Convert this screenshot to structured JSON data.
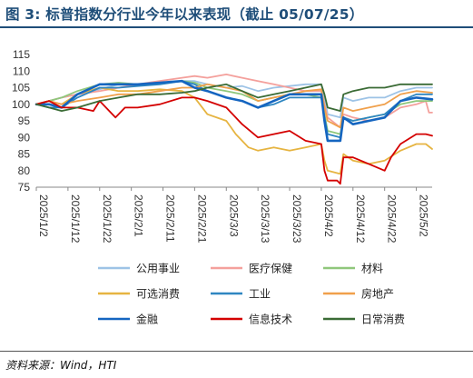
{
  "figure": {
    "title": "图 3:  标普指数分行业今年以来表现（截止 05/07/25）",
    "source": "资料来源：Wind，HTI"
  },
  "chart_data": {
    "type": "line",
    "yticks": [
      75,
      80,
      85,
      90,
      95,
      100,
      105,
      110,
      115
    ],
    "ylim": [
      75,
      115
    ],
    "xticks": [
      "2025/1/2",
      "2025/1/12",
      "2025/1/22",
      "2025/2/1",
      "2025/2/11",
      "2025/2/21",
      "2025/3/3",
      "2025/3/13",
      "2025/3/23",
      "2025/4/2",
      "2025/4/12",
      "2025/4/22",
      "2025/5/2"
    ],
    "xlim": [
      "2025/1/2",
      "2025/5/7"
    ],
    "legend_position": "bottom",
    "grid": false,
    "series": [
      {
        "name": "公用事业",
        "color": "#9dc3e6",
        "width": 1.8,
        "points": [
          [
            "2025/1/2",
            100
          ],
          [
            "2025/1/6",
            101
          ],
          [
            "2025/1/10",
            102
          ],
          [
            "2025/1/15",
            103
          ],
          [
            "2025/1/22",
            104.5
          ],
          [
            "2025/1/28",
            106
          ],
          [
            "2025/2/3",
            106
          ],
          [
            "2025/2/10",
            106.5
          ],
          [
            "2025/2/17",
            107
          ],
          [
            "2025/2/21",
            107
          ],
          [
            "2025/2/25",
            106
          ],
          [
            "2025/3/3",
            105
          ],
          [
            "2025/3/8",
            105.5
          ],
          [
            "2025/3/13",
            104
          ],
          [
            "2025/3/18",
            105
          ],
          [
            "2025/3/23",
            105.5
          ],
          [
            "2025/3/28",
            106
          ],
          [
            "2025/4/2",
            106
          ],
          [
            "2025/4/3",
            102
          ],
          [
            "2025/4/4",
            97
          ],
          [
            "2025/4/8",
            96
          ],
          [
            "2025/4/9",
            102
          ],
          [
            "2025/4/12",
            101
          ],
          [
            "2025/4/17",
            102
          ],
          [
            "2025/4/22",
            102
          ],
          [
            "2025/4/27",
            104
          ],
          [
            "2025/5/2",
            105
          ],
          [
            "2025/5/7",
            105
          ]
        ]
      },
      {
        "name": "医疗保健",
        "color": "#f4a09c",
        "width": 1.8,
        "points": [
          [
            "2025/1/2",
            100
          ],
          [
            "2025/1/6",
            101
          ],
          [
            "2025/1/10",
            102
          ],
          [
            "2025/1/15",
            103
          ],
          [
            "2025/1/22",
            104
          ],
          [
            "2025/1/28",
            105
          ],
          [
            "2025/2/3",
            106
          ],
          [
            "2025/2/10",
            107
          ],
          [
            "2025/2/17",
            108
          ],
          [
            "2025/2/21",
            108.5
          ],
          [
            "2025/2/25",
            108
          ],
          [
            "2025/3/3",
            109
          ],
          [
            "2025/3/8",
            108
          ],
          [
            "2025/3/13",
            107
          ],
          [
            "2025/3/18",
            106
          ],
          [
            "2025/3/23",
            105
          ],
          [
            "2025/3/28",
            104
          ],
          [
            "2025/4/2",
            104
          ],
          [
            "2025/4/3",
            100
          ],
          [
            "2025/4/4",
            96
          ],
          [
            "2025/4/8",
            93
          ],
          [
            "2025/4/9",
            97
          ],
          [
            "2025/4/12",
            96
          ],
          [
            "2025/4/17",
            95
          ],
          [
            "2025/4/22",
            96
          ],
          [
            "2025/4/27",
            99
          ],
          [
            "2025/5/2",
            100
          ],
          [
            "2025/5/5",
            101
          ],
          [
            "2025/5/6",
            97.5
          ],
          [
            "2025/5/7",
            97.5
          ]
        ]
      },
      {
        "name": "材料",
        "color": "#8fc77b",
        "width": 1.8,
        "points": [
          [
            "2025/1/2",
            100
          ],
          [
            "2025/1/6",
            101
          ],
          [
            "2025/1/10",
            102
          ],
          [
            "2025/1/15",
            104
          ],
          [
            "2025/1/22",
            106
          ],
          [
            "2025/1/28",
            106.5
          ],
          [
            "2025/2/3",
            106
          ],
          [
            "2025/2/10",
            106.5
          ],
          [
            "2025/2/17",
            107
          ],
          [
            "2025/2/21",
            106.5
          ],
          [
            "2025/2/25",
            105
          ],
          [
            "2025/3/3",
            104
          ],
          [
            "2025/3/8",
            103
          ],
          [
            "2025/3/13",
            101
          ],
          [
            "2025/3/18",
            102
          ],
          [
            "2025/3/23",
            103
          ],
          [
            "2025/3/28",
            103
          ],
          [
            "2025/4/2",
            102
          ],
          [
            "2025/4/3",
            97
          ],
          [
            "2025/4/4",
            92
          ],
          [
            "2025/4/8",
            91
          ],
          [
            "2025/4/9",
            96
          ],
          [
            "2025/4/12",
            95
          ],
          [
            "2025/4/17",
            96
          ],
          [
            "2025/4/22",
            97
          ],
          [
            "2025/4/27",
            100
          ],
          [
            "2025/5/2",
            101
          ],
          [
            "2025/5/7",
            101
          ]
        ]
      },
      {
        "name": "可选消费",
        "color": "#e6b441",
        "width": 1.8,
        "points": [
          [
            "2025/1/2",
            100
          ],
          [
            "2025/1/6",
            101
          ],
          [
            "2025/1/10",
            100
          ],
          [
            "2025/1/15",
            103
          ],
          [
            "2025/1/22",
            105
          ],
          [
            "2025/1/28",
            104
          ],
          [
            "2025/2/3",
            104
          ],
          [
            "2025/2/10",
            104.5
          ],
          [
            "2025/2/17",
            104
          ],
          [
            "2025/2/21",
            102
          ],
          [
            "2025/2/25",
            97
          ],
          [
            "2025/3/3",
            95
          ],
          [
            "2025/3/6",
            91
          ],
          [
            "2025/3/10",
            87
          ],
          [
            "2025/3/13",
            86
          ],
          [
            "2025/3/18",
            87
          ],
          [
            "2025/3/23",
            86
          ],
          [
            "2025/3/28",
            87
          ],
          [
            "2025/4/2",
            88
          ],
          [
            "2025/4/3",
            83
          ],
          [
            "2025/4/4",
            80
          ],
          [
            "2025/4/8",
            79
          ],
          [
            "2025/4/9",
            85
          ],
          [
            "2025/4/12",
            83
          ],
          [
            "2025/4/17",
            82
          ],
          [
            "2025/4/22",
            83
          ],
          [
            "2025/4/27",
            86
          ],
          [
            "2025/5/2",
            88
          ],
          [
            "2025/5/5",
            88
          ],
          [
            "2025/5/7",
            86.5
          ]
        ]
      },
      {
        "name": "工业",
        "color": "#2e86c1",
        "width": 1.8,
        "points": [
          [
            "2025/1/2",
            100
          ],
          [
            "2025/1/6",
            99
          ],
          [
            "2025/1/10",
            99
          ],
          [
            "2025/1/15",
            102
          ],
          [
            "2025/1/22",
            105
          ],
          [
            "2025/1/28",
            105
          ],
          [
            "2025/2/3",
            105.5
          ],
          [
            "2025/2/10",
            106
          ],
          [
            "2025/2/17",
            107
          ],
          [
            "2025/2/21",
            106
          ],
          [
            "2025/2/25",
            104
          ],
          [
            "2025/3/3",
            102
          ],
          [
            "2025/3/8",
            101
          ],
          [
            "2025/3/13",
            99
          ],
          [
            "2025/3/18",
            100
          ],
          [
            "2025/3/23",
            102
          ],
          [
            "2025/3/28",
            102
          ],
          [
            "2025/4/2",
            102
          ],
          [
            "2025/4/3",
            96
          ],
          [
            "2025/4/4",
            91
          ],
          [
            "2025/4/8",
            90
          ],
          [
            "2025/4/9",
            96
          ],
          [
            "2025/4/12",
            95
          ],
          [
            "2025/4/17",
            96
          ],
          [
            "2025/4/22",
            97
          ],
          [
            "2025/4/27",
            101
          ],
          [
            "2025/5/2",
            103
          ],
          [
            "2025/5/7",
            103
          ]
        ]
      },
      {
        "name": "房地产",
        "color": "#f0a04b",
        "width": 1.8,
        "points": [
          [
            "2025/1/2",
            100
          ],
          [
            "2025/1/6",
            101
          ],
          [
            "2025/1/10",
            100
          ],
          [
            "2025/1/15",
            101
          ],
          [
            "2025/1/22",
            102
          ],
          [
            "2025/1/28",
            103
          ],
          [
            "2025/2/3",
            103
          ],
          [
            "2025/2/10",
            104
          ],
          [
            "2025/2/17",
            105
          ],
          [
            "2025/2/21",
            105
          ],
          [
            "2025/2/25",
            106
          ],
          [
            "2025/3/3",
            105
          ],
          [
            "2025/3/8",
            104
          ],
          [
            "2025/3/13",
            101
          ],
          [
            "2025/3/18",
            102
          ],
          [
            "2025/3/23",
            103
          ],
          [
            "2025/3/28",
            104
          ],
          [
            "2025/4/2",
            104.5
          ],
          [
            "2025/4/3",
            99
          ],
          [
            "2025/4/4",
            95
          ],
          [
            "2025/4/8",
            93
          ],
          [
            "2025/4/9",
            99
          ],
          [
            "2025/4/12",
            98
          ],
          [
            "2025/4/17",
            99
          ],
          [
            "2025/4/22",
            100
          ],
          [
            "2025/4/27",
            103
          ],
          [
            "2025/5/2",
            104
          ],
          [
            "2025/5/7",
            103.5
          ]
        ]
      },
      {
        "name": "金融",
        "color": "#1565c0",
        "width": 2.6,
        "points": [
          [
            "2025/1/2",
            100
          ],
          [
            "2025/1/6",
            100
          ],
          [
            "2025/1/10",
            99
          ],
          [
            "2025/1/15",
            103
          ],
          [
            "2025/1/22",
            106
          ],
          [
            "2025/1/28",
            106
          ],
          [
            "2025/2/3",
            106
          ],
          [
            "2025/2/10",
            106.5
          ],
          [
            "2025/2/17",
            107
          ],
          [
            "2025/2/21",
            105
          ],
          [
            "2025/2/25",
            104
          ],
          [
            "2025/3/3",
            102
          ],
          [
            "2025/3/8",
            101
          ],
          [
            "2025/3/13",
            99
          ],
          [
            "2025/3/18",
            101
          ],
          [
            "2025/3/23",
            103
          ],
          [
            "2025/3/28",
            103
          ],
          [
            "2025/4/2",
            103
          ],
          [
            "2025/4/3",
            95
          ],
          [
            "2025/4/4",
            89
          ],
          [
            "2025/4/8",
            89
          ],
          [
            "2025/4/9",
            96
          ],
          [
            "2025/4/12",
            94
          ],
          [
            "2025/4/17",
            95
          ],
          [
            "2025/4/22",
            96
          ],
          [
            "2025/4/27",
            101
          ],
          [
            "2025/5/2",
            102
          ],
          [
            "2025/5/7",
            101.5
          ]
        ]
      },
      {
        "name": "信息技术",
        "color": "#d40000",
        "width": 1.8,
        "points": [
          [
            "2025/1/2",
            100
          ],
          [
            "2025/1/6",
            101
          ],
          [
            "2025/1/10",
            99
          ],
          [
            "2025/1/15",
            99
          ],
          [
            "2025/1/20",
            98
          ],
          [
            "2025/1/22",
            101
          ],
          [
            "2025/1/27",
            96
          ],
          [
            "2025/1/30",
            99
          ],
          [
            "2025/2/3",
            99
          ],
          [
            "2025/2/10",
            100
          ],
          [
            "2025/2/17",
            102
          ],
          [
            "2025/2/21",
            102
          ],
          [
            "2025/2/25",
            101
          ],
          [
            "2025/3/3",
            99
          ],
          [
            "2025/3/8",
            94
          ],
          [
            "2025/3/13",
            90
          ],
          [
            "2025/3/18",
            91
          ],
          [
            "2025/3/23",
            92
          ],
          [
            "2025/3/28",
            89
          ],
          [
            "2025/4/2",
            88
          ],
          [
            "2025/4/3",
            80
          ],
          [
            "2025/4/4",
            77
          ],
          [
            "2025/4/7",
            77
          ],
          [
            "2025/4/8",
            76
          ],
          [
            "2025/4/9",
            84
          ],
          [
            "2025/4/12",
            84
          ],
          [
            "2025/4/17",
            82
          ],
          [
            "2025/4/22",
            80
          ],
          [
            "2025/4/24",
            84
          ],
          [
            "2025/4/27",
            88
          ],
          [
            "2025/5/2",
            91
          ],
          [
            "2025/5/5",
            91
          ],
          [
            "2025/5/7",
            90.5
          ]
        ]
      },
      {
        "name": "日常消费",
        "color": "#3a6b35",
        "width": 1.8,
        "points": [
          [
            "2025/1/2",
            100
          ],
          [
            "2025/1/6",
            99
          ],
          [
            "2025/1/10",
            98
          ],
          [
            "2025/1/15",
            99
          ],
          [
            "2025/1/22",
            101
          ],
          [
            "2025/1/28",
            102
          ],
          [
            "2025/2/3",
            103
          ],
          [
            "2025/2/10",
            103
          ],
          [
            "2025/2/17",
            103.5
          ],
          [
            "2025/2/21",
            104
          ],
          [
            "2025/2/25",
            105
          ],
          [
            "2025/3/3",
            106
          ],
          [
            "2025/3/8",
            104
          ],
          [
            "2025/3/13",
            102
          ],
          [
            "2025/3/18",
            103
          ],
          [
            "2025/3/23",
            104
          ],
          [
            "2025/3/28",
            105
          ],
          [
            "2025/4/2",
            106
          ],
          [
            "2025/4/3",
            103
          ],
          [
            "2025/4/4",
            99
          ],
          [
            "2025/4/8",
            98
          ],
          [
            "2025/4/9",
            103
          ],
          [
            "2025/4/12",
            104
          ],
          [
            "2025/4/17",
            105
          ],
          [
            "2025/4/22",
            105
          ],
          [
            "2025/4/27",
            106
          ],
          [
            "2025/5/2",
            106
          ],
          [
            "2025/5/7",
            106
          ]
        ]
      }
    ]
  }
}
